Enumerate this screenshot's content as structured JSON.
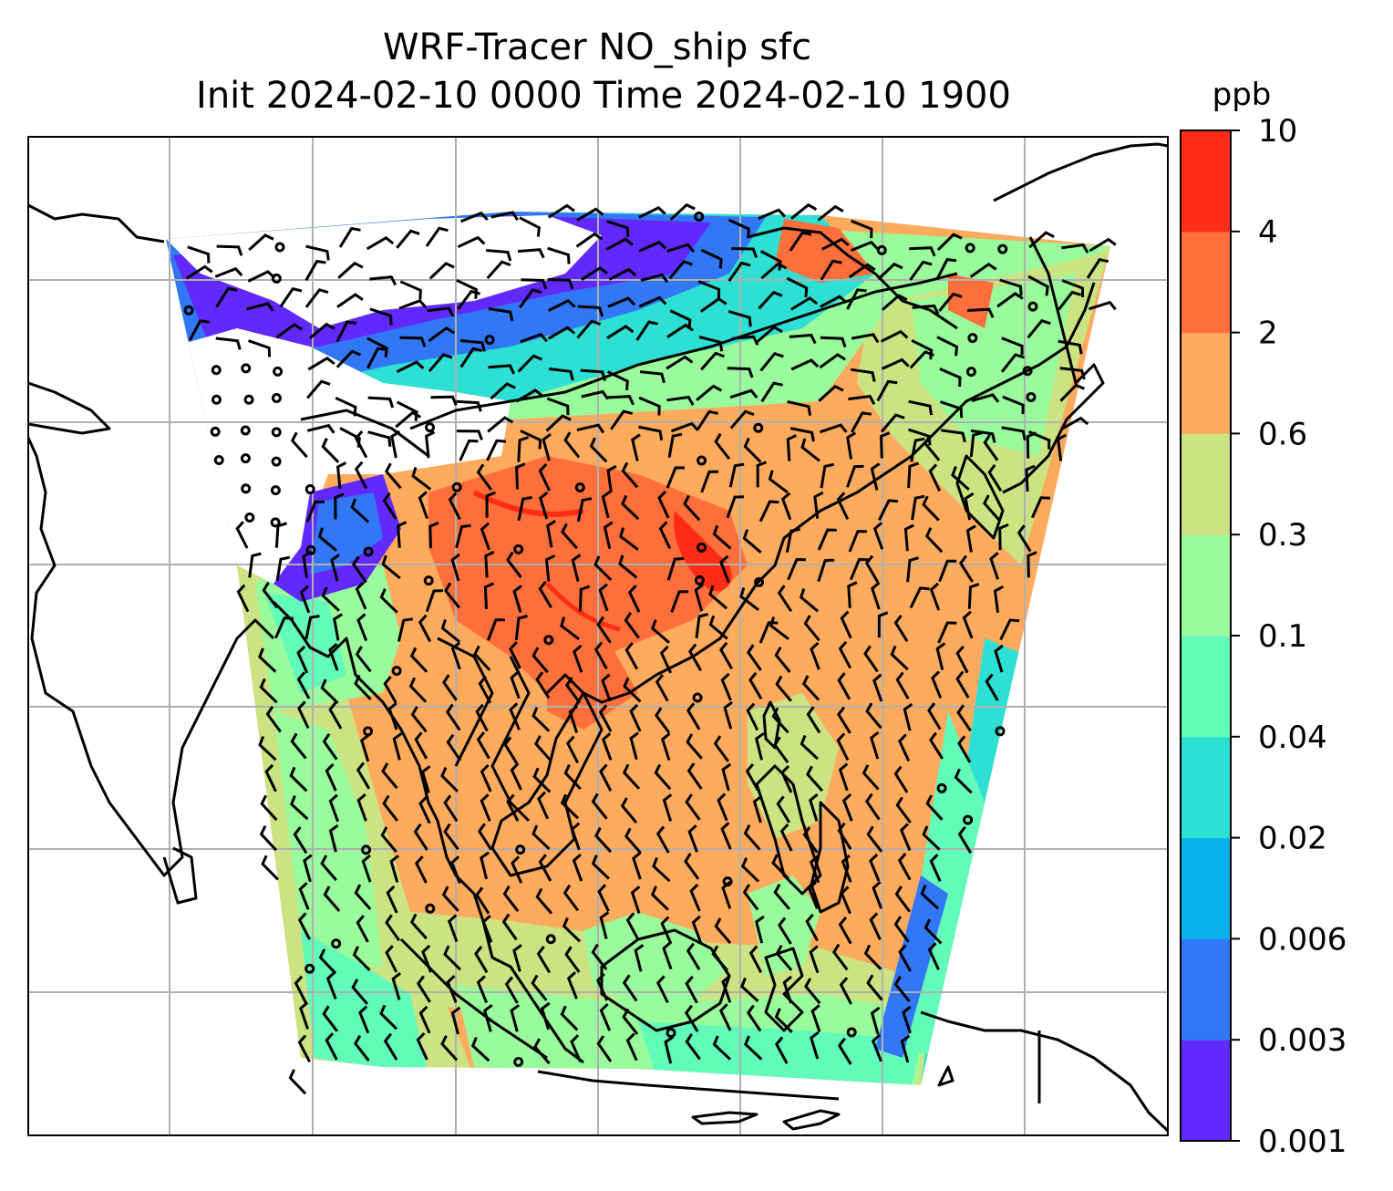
{
  "title": {
    "line1": "WRF-Tracer NO_ship sfc",
    "line2": "Init 2024-02-10 0000 Time 2024-02-10 1900"
  },
  "colorbar": {
    "unit": "ppb",
    "ticks": [
      "0.001",
      "0.003",
      "0.006",
      "0.02",
      "0.04",
      "0.1",
      "0.3",
      "0.6",
      "2",
      "4",
      "10"
    ],
    "colors": [
      "#6229fd",
      "#3277f5",
      "#08b1e9",
      "#2de0d3",
      "#63fbb9",
      "#99fb9b",
      "#cce383",
      "#feab5e",
      "#ff6f3b",
      "#ff2c16"
    ]
  },
  "map": {
    "palette": {
      "lowest": "#6229fd",
      "very_low": "#3277f5",
      "low": "#2de0d3",
      "mid_low": "#63fbb9",
      "mid": "#99fb9b",
      "mid_high": "#cce383",
      "high": "#feab5e",
      "very_high": "#ff6f3b",
      "peak": "#ff2c16"
    },
    "gridline_color": "#b0b0b0",
    "coastline_color": "#000000",
    "wind_barb_color": "#000000"
  }
}
